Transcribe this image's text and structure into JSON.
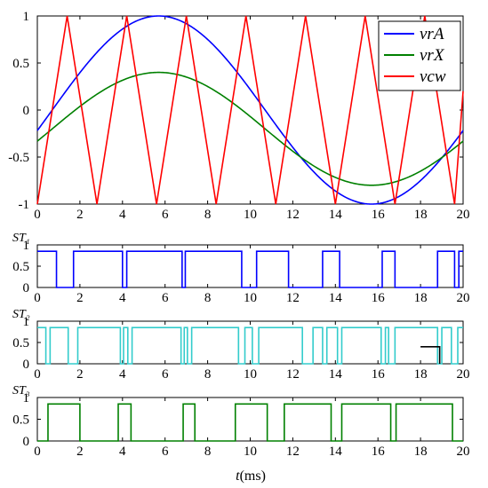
{
  "figure": {
    "xlabel_var": "t",
    "xlabel_unit": "(ms)"
  },
  "chart_data": [
    {
      "type": "line",
      "xlabel": "t(ms)",
      "ylabel": "",
      "xlim": [
        0,
        20
      ],
      "ylim": [
        -1,
        1
      ],
      "x_ticks": [
        "0",
        "2",
        "4",
        "6",
        "8",
        "10",
        "12",
        "14",
        "16",
        "18",
        "20"
      ],
      "y_ticks": [
        "-1",
        "-0.5",
        "0",
        "0.5",
        "1"
      ],
      "legend_position": "top-right",
      "grid": false,
      "series": [
        {
          "name": "vrA",
          "color": "#0000ff",
          "kind": "sine",
          "amplitude": 1.0,
          "offset": 0.0,
          "period_ms": 20,
          "phase_ms": 0.7
        },
        {
          "name": "vrX",
          "color": "#008000",
          "kind": "sine",
          "amplitude": 0.6,
          "offset": -0.2,
          "period_ms": 20,
          "phase_ms": 0.7
        },
        {
          "name": "vcw",
          "color": "#ff0000",
          "kind": "triangle",
          "x": [
            0,
            1.4,
            2.8,
            4.2,
            5.6,
            7.0,
            8.4,
            9.8,
            11.2,
            12.6,
            14.0,
            15.4,
            16.8,
            18.2,
            19.6,
            20
          ],
          "y": [
            -1,
            1,
            -1,
            1,
            -1,
            1,
            -1,
            1,
            -1,
            1,
            -1,
            1,
            -1,
            1,
            -1,
            0.2
          ]
        }
      ]
    },
    {
      "type": "line",
      "title": "ST₁",
      "xlim": [
        0,
        20
      ],
      "ylim": [
        0,
        1
      ],
      "x_ticks": [
        "0",
        "2",
        "4",
        "6",
        "8",
        "10",
        "12",
        "14",
        "16",
        "18",
        "20"
      ],
      "y_ticks": [
        "0",
        "0.5",
        "1"
      ],
      "series": [
        {
          "color": "#0000ff",
          "x": [
            0,
            0.9,
            0.9,
            1.7,
            1.7,
            4.0,
            4.0,
            4.2,
            4.2,
            6.8,
            6.8,
            6.95,
            6.95,
            9.6,
            9.6,
            10.3,
            10.3,
            11.8,
            11.8,
            13.4,
            13.4,
            14.2,
            14.2,
            16.2,
            16.2,
            16.8,
            16.8,
            18.8,
            18.8,
            19.6,
            19.6,
            19.8,
            19.8,
            20
          ],
          "y": [
            0.85,
            0.85,
            0,
            0,
            0.85,
            0.85,
            0,
            0,
            0.85,
            0.85,
            0,
            0,
            0.85,
            0.85,
            0,
            0,
            0.85,
            0.85,
            0,
            0,
            0.85,
            0.85,
            0,
            0,
            0.85,
            0.85,
            0,
            0,
            0.85,
            0.85,
            0,
            0,
            0.85,
            0.85
          ]
        }
      ]
    },
    {
      "type": "line",
      "title": "ST₂",
      "xlim": [
        0,
        20
      ],
      "ylim": [
        0,
        1
      ],
      "x_ticks": [
        "0",
        "2",
        "4",
        "6",
        "8",
        "10",
        "12",
        "14",
        "16",
        "18",
        "20"
      ],
      "y_ticks": [
        "0",
        "0.5",
        "1"
      ],
      "series": [
        {
          "color": "#33cccc",
          "x": [
            0,
            0.4,
            0.4,
            0.6,
            0.6,
            1.45,
            1.45,
            1.9,
            1.9,
            3.9,
            3.9,
            4.05,
            4.05,
            4.25,
            4.25,
            4.45,
            4.45,
            6.75,
            6.75,
            6.9,
            6.9,
            7.05,
            7.05,
            7.25,
            7.25,
            9.45,
            9.45,
            9.75,
            9.75,
            10.1,
            10.1,
            10.4,
            10.4,
            12.45,
            12.45,
            12.95,
            12.95,
            13.4,
            13.4,
            13.6,
            13.6,
            14.1,
            14.1,
            14.3,
            14.3,
            16.15,
            16.15,
            16.35,
            16.35,
            16.5,
            16.5,
            16.8,
            16.8,
            18.8,
            18.8,
            19.0,
            19.0,
            19.45,
            19.45,
            19.75,
            19.75,
            20
          ],
          "y": [
            0.85,
            0.85,
            0,
            0,
            0.85,
            0.85,
            0,
            0,
            0.85,
            0.85,
            0,
            0,
            0.85,
            0.85,
            0,
            0,
            0.85,
            0.85,
            0,
            0,
            0.85,
            0.85,
            0,
            0,
            0.85,
            0.85,
            0,
            0,
            0.85,
            0.85,
            0,
            0,
            0.85,
            0.85,
            0,
            0,
            0.85,
            0.85,
            0,
            0,
            0.85,
            0.85,
            0,
            0,
            0.85,
            0.85,
            0,
            0,
            0.85,
            0.85,
            0,
            0,
            0.85,
            0.85,
            0,
            0,
            0.85,
            0.85,
            0,
            0,
            0.85,
            0.85
          ]
        },
        {
          "color": "#000000",
          "x": [
            18.0,
            18.9,
            18.9
          ],
          "y": [
            0.4,
            0.4,
            0
          ]
        }
      ]
    },
    {
      "type": "line",
      "title": "ST₃",
      "xlim": [
        0,
        20
      ],
      "ylim": [
        0,
        1
      ],
      "x_ticks": [
        "0",
        "2",
        "4",
        "6",
        "8",
        "10",
        "12",
        "14",
        "16",
        "18",
        "20"
      ],
      "y_ticks": [
        "0",
        "0.5",
        "1"
      ],
      "series": [
        {
          "color": "#008000",
          "x": [
            0,
            0.5,
            0.5,
            2.0,
            2.0,
            3.8,
            3.8,
            4.4,
            4.4,
            6.85,
            6.85,
            7.4,
            7.4,
            9.3,
            9.3,
            10.8,
            10.8,
            11.6,
            11.6,
            13.8,
            13.8,
            14.3,
            14.3,
            16.6,
            16.6,
            16.85,
            16.85,
            19.5,
            19.5,
            20
          ],
          "y": [
            0,
            0,
            0.85,
            0.85,
            0,
            0,
            0.85,
            0.85,
            0,
            0,
            0.85,
            0.85,
            0,
            0,
            0.85,
            0.85,
            0,
            0,
            0.85,
            0.85,
            0,
            0,
            0.85,
            0.85,
            0,
            0,
            0.85,
            0.85,
            0,
            0
          ]
        }
      ]
    }
  ]
}
